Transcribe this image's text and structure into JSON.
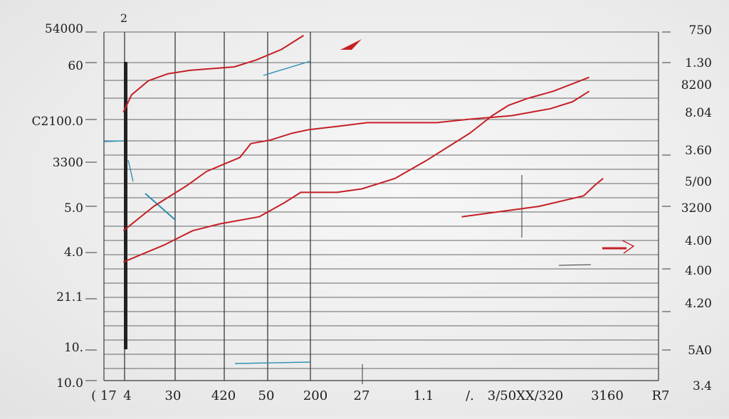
{
  "chart_data": {
    "type": "line",
    "title": "",
    "xlabel": "",
    "ylabel": "",
    "grid": true,
    "legend": "none",
    "top_label": "2",
    "x_tick_labels": [
      "( 17",
      "4",
      "30",
      "420",
      "50",
      "200",
      "27",
      "1.1",
      "/.",
      "3/50XX/320",
      "3160",
      "R7"
    ],
    "y_left_labels": [
      "54000",
      "60",
      "C2100.0",
      "3300",
      "5.0",
      "4.0",
      "21.1",
      "10.",
      "10.0"
    ],
    "y_right_labels": [
      "750",
      "1.30",
      "8200",
      "8.04",
      "3.60",
      "5/00",
      "3200",
      "4.00",
      "4.00",
      "4.20",
      "5A0",
      "3.4"
    ],
    "colors": {
      "series": "#c42026",
      "accent": "#2b8fb3",
      "grid": "#3a3a3a"
    },
    "series": [
      {
        "values": [
          [
            0.07,
            0.43
          ],
          [
            0.18,
            0.5
          ],
          [
            0.3,
            0.56
          ],
          [
            0.37,
            0.6
          ],
          [
            0.43,
            0.62
          ],
          [
            0.49,
            0.64
          ],
          [
            0.53,
            0.68
          ],
          [
            0.6,
            0.69
          ],
          [
            0.68,
            0.71
          ],
          [
            0.74,
            0.72
          ],
          [
            0.85,
            0.73
          ],
          [
            0.95,
            0.74
          ],
          [
            1.13,
            0.74
          ],
          [
            1.2,
            0.74
          ],
          [
            1.32,
            0.75
          ],
          [
            1.47,
            0.76
          ],
          [
            1.61,
            0.78
          ],
          [
            1.69,
            0.8
          ],
          [
            1.75,
            0.83
          ]
        ]
      },
      {
        "values": [
          [
            0.07,
            0.34
          ],
          [
            0.13,
            0.36
          ],
          [
            0.22,
            0.39
          ],
          [
            0.32,
            0.43
          ],
          [
            0.42,
            0.45
          ],
          [
            0.56,
            0.47
          ],
          [
            0.65,
            0.51
          ],
          [
            0.71,
            0.54
          ],
          [
            0.84,
            0.54
          ],
          [
            0.93,
            0.55
          ],
          [
            1.05,
            0.58
          ],
          [
            1.16,
            0.63
          ],
          [
            1.32,
            0.71
          ],
          [
            1.4,
            0.76
          ],
          [
            1.46,
            0.79
          ],
          [
            1.53,
            0.81
          ],
          [
            1.62,
            0.83
          ],
          [
            1.75,
            0.87
          ]
        ]
      },
      {
        "values": [
          [
            0.07,
            0.77
          ],
          [
            0.1,
            0.82
          ],
          [
            0.16,
            0.86
          ],
          [
            0.23,
            0.88
          ],
          [
            0.31,
            0.89
          ],
          [
            0.47,
            0.9
          ],
          [
            0.55,
            0.92
          ],
          [
            0.64,
            0.95
          ],
          [
            0.72,
            0.99
          ]
        ]
      },
      {
        "values": [
          [
            1.29,
            0.47
          ],
          [
            1.57,
            0.5
          ],
          [
            1.73,
            0.53
          ],
          [
            1.77,
            0.56
          ],
          [
            1.8,
            0.58
          ]
        ]
      }
    ]
  }
}
